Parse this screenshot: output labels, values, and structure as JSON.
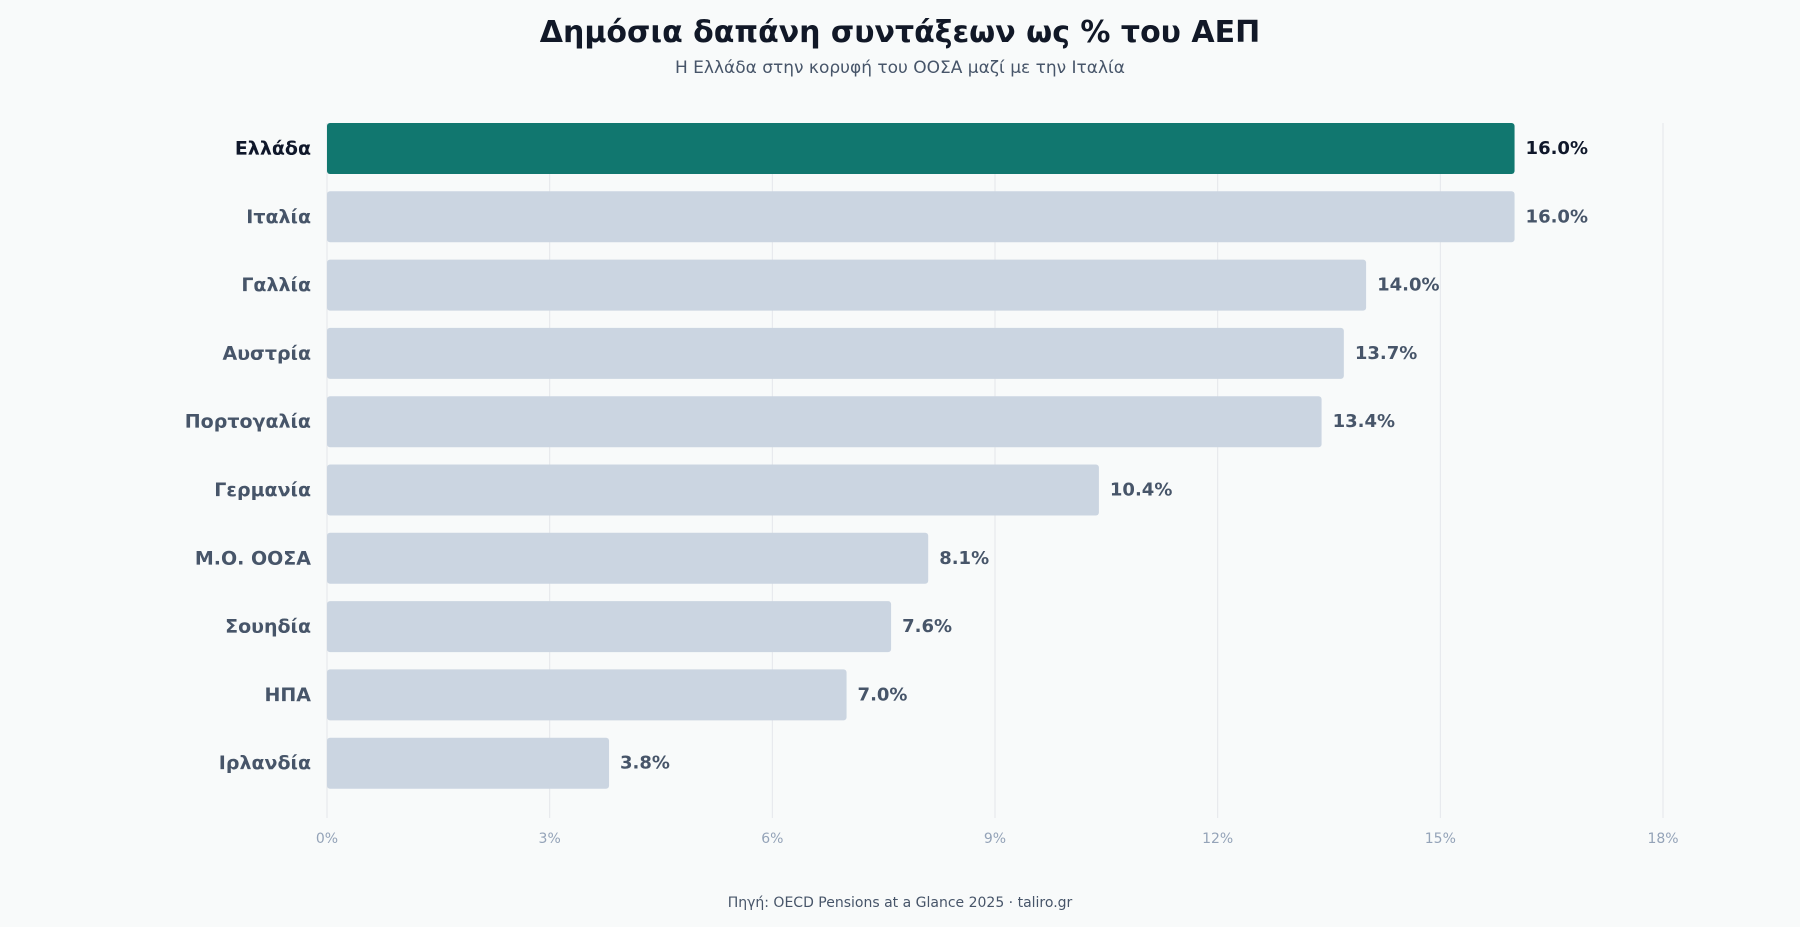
{
  "title": "Δημόσια δαπάνη συντάξεων ως % του ΑΕΠ",
  "subtitle": "Η Ελλάδα στην κορυφή του ΟΟΣΑ μαζί με την Ιταλία",
  "source": "Πηγή: OECD Pensions at a Glance 2025 · taliro.gr",
  "colors": {
    "highlight": "#11776f",
    "bar": "#cbd5e1",
    "grid": "#e5e7eb",
    "label": "#475569",
    "label_highlight": "#0f172a",
    "tick": "#94a3b8"
  },
  "chart_data": {
    "type": "bar",
    "orientation": "horizontal",
    "categories": [
      "Ελλάδα",
      "Ιταλία",
      "Γαλλία",
      "Αυστρία",
      "Πορτογαλία",
      "Γερμανία",
      "Μ.Ο. ΟΟΣΑ",
      "Σουηδία",
      "ΗΠΑ",
      "Ιρλανδία"
    ],
    "values": [
      16.0,
      16.0,
      14.0,
      13.7,
      13.4,
      10.4,
      8.1,
      7.6,
      7.0,
      3.8
    ],
    "value_labels": [
      "16.0%",
      "16.0%",
      "14.0%",
      "13.7%",
      "13.4%",
      "10.4%",
      "8.1%",
      "7.6%",
      "7.0%",
      "3.8%"
    ],
    "highlight_index": 0,
    "xlim": [
      0,
      18
    ],
    "xticks": [
      0,
      3,
      6,
      9,
      12,
      15,
      18
    ],
    "xtick_labels": [
      "0%",
      "3%",
      "6%",
      "9%",
      "12%",
      "15%",
      "18%"
    ],
    "grid": true,
    "xlabel": "",
    "ylabel": ""
  }
}
